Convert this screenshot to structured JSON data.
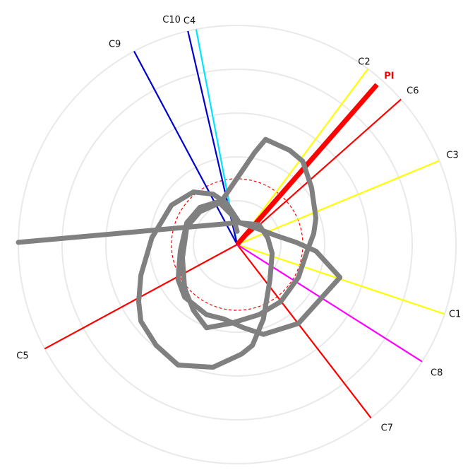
{
  "chart_data": {
    "type": "polar",
    "rings": [
      0.2,
      0.4,
      0.6,
      0.8,
      1.0
    ],
    "reference_circle": {
      "radius": 0.3,
      "color": "#ff0000",
      "style": "dashed"
    },
    "vectors": [
      {
        "label": "C1",
        "angle_deg": -18.5,
        "length": 1.0,
        "color": "#ffff00"
      },
      {
        "label": "C2",
        "angle_deg": 53.3,
        "length": 1.0,
        "color": "#ffff00"
      },
      {
        "label": "C3",
        "angle_deg": 22.5,
        "length": 1.0,
        "color": "#ffff00"
      },
      {
        "label": "C4",
        "angle_deg": 100.8,
        "length": 1.0,
        "color": "#00e5ff"
      },
      {
        "label": "C5",
        "angle_deg": -151.6,
        "length": 1.0,
        "color": "#ff0000"
      },
      {
        "label": "C6",
        "angle_deg": 41.5,
        "length": 1.0,
        "color": "#ff0000"
      },
      {
        "label": "C7",
        "angle_deg": -52.3,
        "length": 1.0,
        "color": "#ff0000"
      },
      {
        "label": "C8",
        "angle_deg": -32.3,
        "length": 1.0,
        "color": "#ff00ff"
      },
      {
        "label": "C9",
        "angle_deg": 118.1,
        "length": 1.0,
        "color": "#0000cc"
      },
      {
        "label": "C10",
        "angle_deg": 103.0,
        "length": 1.0,
        "color": "#0000cc"
      },
      {
        "label": "PI",
        "angle_deg": 48.8,
        "length": 1.0,
        "color": "#ff0000",
        "bold": true
      }
    ],
    "trajectory": {
      "color": "#808080",
      "points": [
        [
          -1,
          0.01
        ],
        [
          0.006,
          0.1
        ],
        [
          0.1,
          0.09
        ],
        [
          0.14,
          0.03
        ],
        [
          0.16,
          -0.04
        ],
        [
          0.15,
          -0.16
        ],
        [
          0.12,
          -0.34
        ],
        [
          0.07,
          -0.46
        ],
        [
          0.02,
          -0.5
        ],
        [
          -0.11,
          -0.56
        ],
        [
          -0.27,
          -0.55
        ],
        [
          -0.37,
          -0.46
        ],
        [
          -0.44,
          -0.35
        ],
        [
          -0.45,
          -0.26
        ],
        [
          -0.44,
          -0.14
        ],
        [
          -0.39,
          0.03
        ],
        [
          -0.3,
          0.18
        ],
        [
          -0.2,
          0.24
        ],
        [
          -0.11,
          0.23
        ],
        [
          -0.05,
          0.19
        ],
        [
          0.01,
          0.1
        ],
        [
          0.1,
          0.07
        ],
        [
          0.18,
          0.04
        ],
        [
          0.27,
          0.01
        ],
        [
          0.36,
          -0.03
        ],
        [
          0.47,
          -0.15
        ],
        [
          0.28,
          -0.36
        ],
        [
          0.12,
          -0.41
        ],
        [
          0.03,
          -0.38
        ],
        [
          -0.06,
          -0.34
        ],
        [
          -0.14,
          -0.32
        ],
        [
          -0.24,
          -0.24
        ],
        [
          -0.27,
          -0.16
        ],
        [
          -0.26,
          -0.03
        ],
        [
          -0.23,
          0.1
        ],
        [
          -0.17,
          0.17
        ],
        [
          -0.07,
          0.2
        ],
        [
          0.08,
          0.42
        ],
        [
          0.13,
          0.48
        ],
        [
          0.24,
          0.43
        ],
        [
          0.3,
          0.38
        ],
        [
          0.34,
          0.26
        ],
        [
          0.36,
          0.12
        ],
        [
          0.35,
          0.05
        ],
        [
          0.32,
          -0.03
        ],
        [
          0.28,
          -0.15
        ],
        [
          0.2,
          -0.26
        ],
        [
          0.1,
          -0.32
        ],
        [
          -0.03,
          -0.36
        ],
        [
          -0.14,
          -0.38
        ],
        [
          -0.2,
          -0.3
        ],
        [
          -0.24,
          -0.2
        ],
        [
          -0.25,
          -0.06
        ],
        [
          -0.23,
          0.08
        ],
        [
          -0.17,
          0.15
        ],
        [
          -0.08,
          0.19
        ],
        [
          -0.02,
          0.13
        ],
        [
          0.0,
          0.06
        ]
      ]
    }
  }
}
